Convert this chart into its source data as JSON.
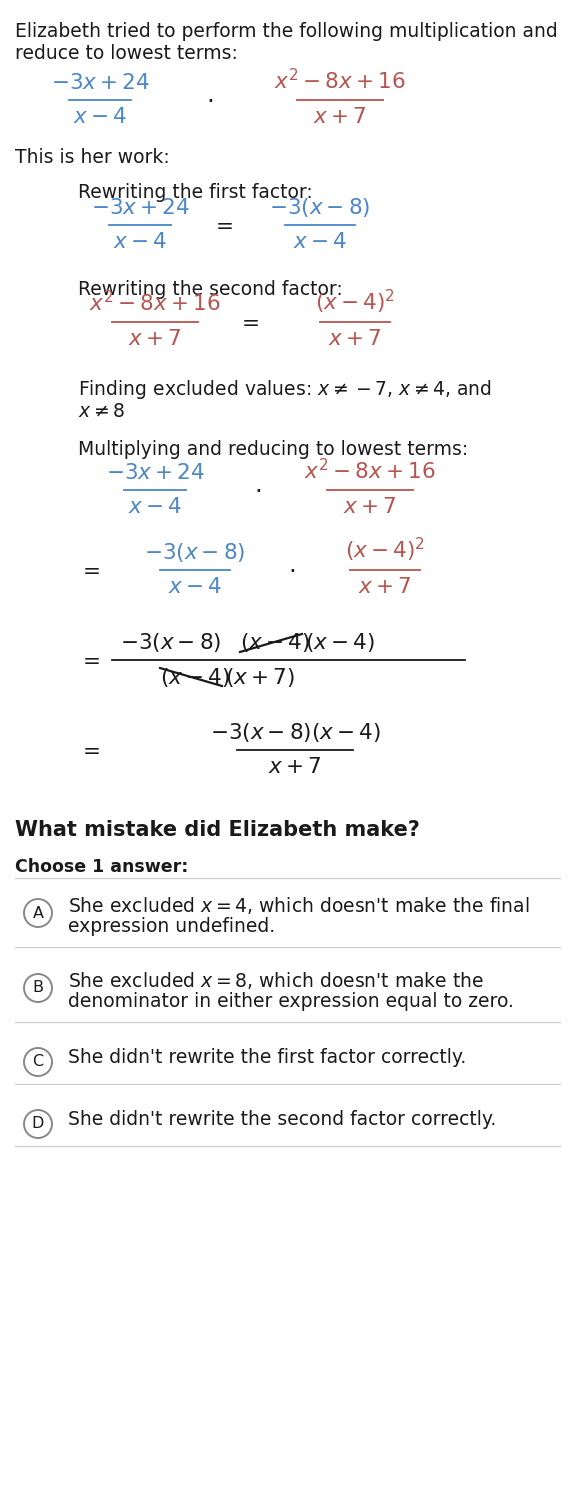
{
  "bg_color": "#ffffff",
  "text_color": "#1a1a1a",
  "blue": "#4a86c8",
  "red": "#b85450",
  "dark": "#1a1a1a",
  "gray_line": "#cccccc",
  "circle_color": "#888888",
  "intro1": "Elizabeth tried to perform the following multiplication and",
  "intro2": "reduce to lowest terms:",
  "work_header": "This is her work:",
  "finding_excl1": "Finding excluded values: $x \\neq -7$, $x \\neq 4$, and",
  "finding_excl2": "$x \\neq 8$",
  "multiply_header": "Multiplying and reducing to lowest terms:",
  "question": "What mistake did Elizabeth make?",
  "choose": "Choose 1 answer:",
  "ans_A1": "She excluded $x = 4$, which doesn't make the final",
  "ans_A2": "expression undefined.",
  "ans_B1": "She excluded $x = 8$, which doesn't make the",
  "ans_B2": "denominator in either expression equal to zero.",
  "ans_C": "She didn't rewrite the first factor correctly.",
  "ans_D": "She didn't rewrite the second factor correctly.",
  "fs_body": 13.5,
  "fs_math": 15.5,
  "fs_small": 12.5
}
